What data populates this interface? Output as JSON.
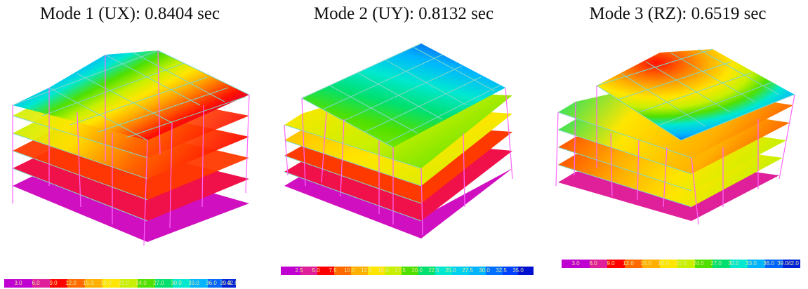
{
  "panels": [
    {
      "title": "Mode 1 (UX): 0.8404 sec",
      "mode": "UX",
      "legend_ticks": [
        "3.0",
        "6.0",
        "9.0",
        "12.0",
        "15.0",
        "18.0",
        "21.0",
        "24.0",
        "27.0",
        "30.0",
        "33.0",
        "36.0",
        "39.0",
        "42.0"
      ]
    },
    {
      "title": "Mode 2 (UY): 0.8132 sec",
      "mode": "UY",
      "legend_ticks": [
        "2.5",
        "5.0",
        "7.5",
        "10.0",
        "12.5",
        "15.0",
        "17.5",
        "20.0",
        "22.5",
        "25.0",
        "27.5",
        "30.0",
        "32.5",
        "35.0"
      ]
    },
    {
      "title": "Mode 3 (RZ): 0.6519 sec",
      "mode": "RZ",
      "legend_ticks": [
        "3.0",
        "6.0",
        "9.0",
        "12.0",
        "15.0",
        "18.0",
        "21.0",
        "24.0",
        "27.0",
        "30.0",
        "33.0",
        "36.0",
        "39.0",
        "42.0"
      ]
    }
  ],
  "colors": {
    "scale": [
      "#c000d0",
      "#e0209a",
      "#ff0000",
      "#ff6a00",
      "#ffb000",
      "#ffe600",
      "#c8f000",
      "#50e000",
      "#00e070",
      "#00e8d0",
      "#00b4ff",
      "#0064ff",
      "#0020d8"
    ],
    "frame": "#ff66ff",
    "grid": "#80d8c8"
  }
}
